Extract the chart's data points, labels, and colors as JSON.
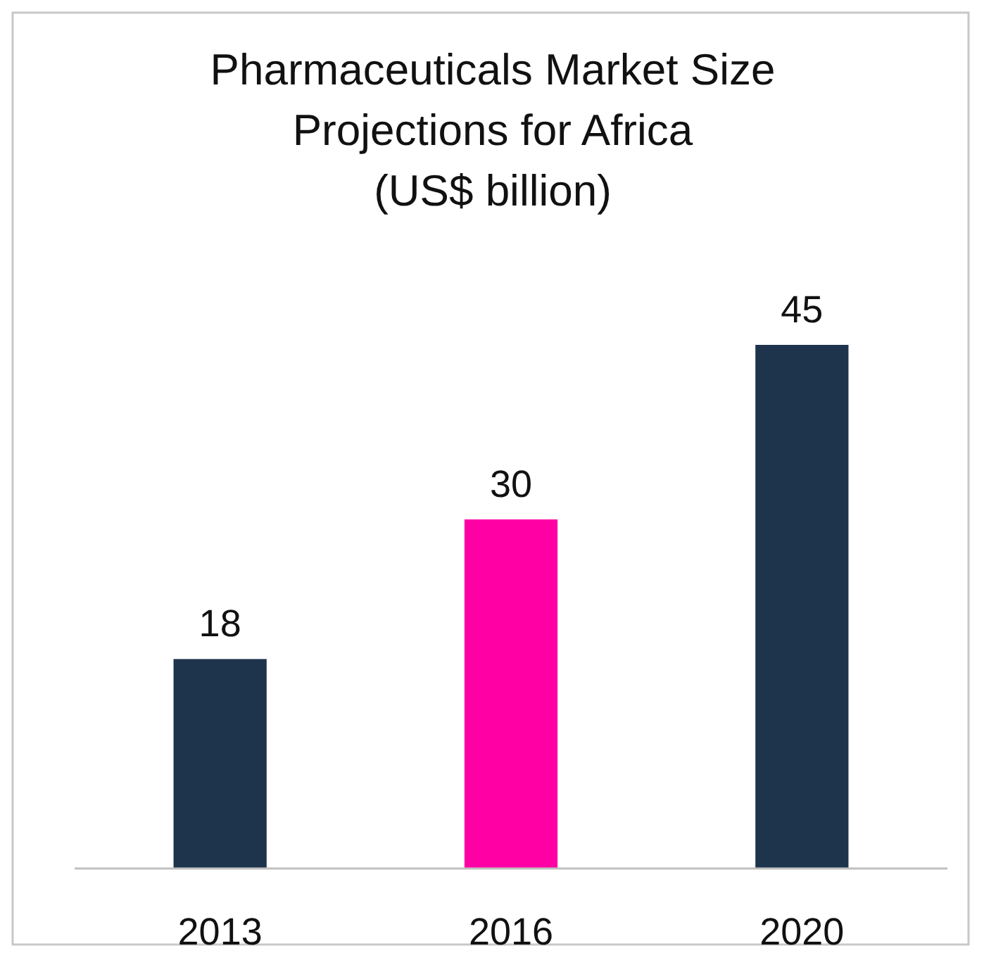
{
  "chart_data": {
    "type": "bar",
    "title": "Pharmaceuticals Market Size\nProjections for Africa\n(US$ billion)",
    "categories": [
      "2013",
      "2016",
      "2020"
    ],
    "values": [
      18,
      30,
      45
    ],
    "colors": [
      "#1e344d",
      "#ff00a5",
      "#1e344d"
    ],
    "data_labels": true
  }
}
